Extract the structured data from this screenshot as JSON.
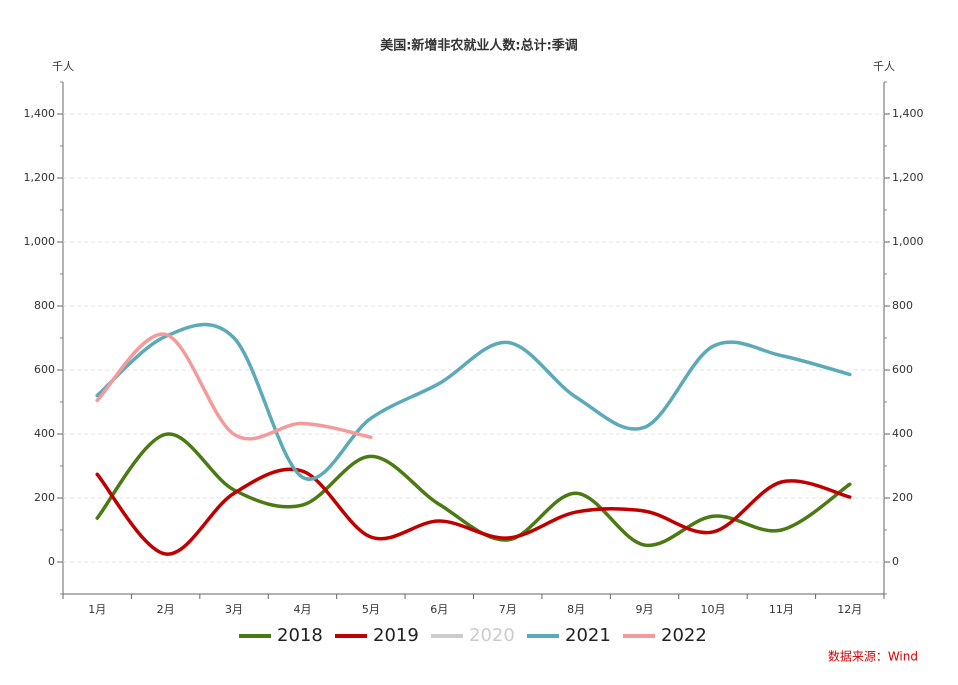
{
  "chart_data": {
    "type": "line",
    "title": "美国:新增非农就业人数:总计:季调",
    "ylabel": "千人",
    "y2label": "千人",
    "source": "数据来源：Wind",
    "categories": [
      "1月",
      "2月",
      "3月",
      "4月",
      "5月",
      "6月",
      "7月",
      "8月",
      "9月",
      "10月",
      "11月",
      "12月"
    ],
    "series": [
      {
        "name": "2018",
        "color": "#4a7a12",
        "visible": true,
        "values": [
          137,
          399,
          225,
          178,
          330,
          180,
          69,
          215,
          53,
          143,
          100,
          243
        ]
      },
      {
        "name": "2019",
        "color": "#c00000",
        "visible": true,
        "values": [
          274,
          25,
          215,
          284,
          78,
          128,
          75,
          156,
          159,
          94,
          250,
          203
        ]
      },
      {
        "name": "2020",
        "color": "#cccccc",
        "visible": false,
        "values": [
          null,
          null,
          null,
          null,
          null,
          null,
          null,
          null,
          null,
          null,
          null,
          null
        ]
      },
      {
        "name": "2021",
        "color": "#5aaab8",
        "visible": true,
        "values": [
          520,
          705,
          700,
          265,
          449,
          558,
          686,
          515,
          421,
          674,
          645,
          586
        ]
      },
      {
        "name": "2022",
        "color": "#f59a9a",
        "visible": true,
        "values": [
          505,
          711,
          399,
          433,
          390,
          null,
          null,
          null,
          null,
          null,
          null,
          null
        ]
      }
    ],
    "ylim": [
      -100,
      1500
    ],
    "yticks": [
      0,
      200,
      400,
      600,
      800,
      {
        "value": 1000,
        "label": "1,000"
      },
      {
        "value": 1200,
        "label": "1,200"
      },
      {
        "value": 1400,
        "label": "1,400"
      }
    ],
    "y2lim": [
      -100,
      1500
    ],
    "y2ticks": [
      0,
      200,
      400,
      600,
      800,
      {
        "value": 1000,
        "label": "1,000"
      },
      {
        "value": 1200,
        "label": "1,200"
      },
      {
        "value": 1400,
        "label": "1,400"
      }
    ],
    "grid": true,
    "smooth": true,
    "legend": "bottom"
  }
}
